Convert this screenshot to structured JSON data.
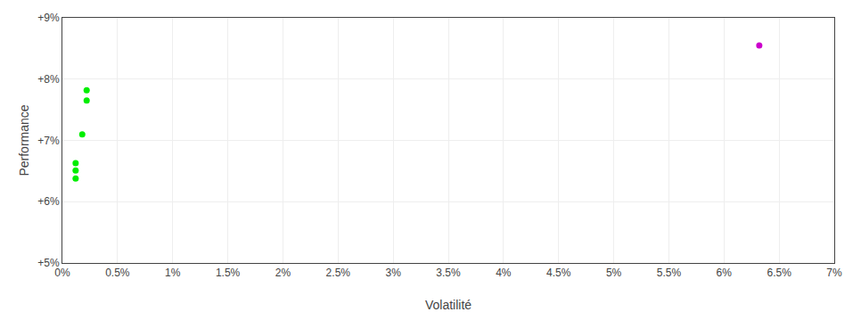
{
  "chart_data": {
    "type": "scatter",
    "x_label": "Volatilité",
    "y_label": "Performance",
    "series": [
      {
        "color": "#00ee00",
        "marker": "circle",
        "x": [
          0.0022,
          0.0022,
          0.0018,
          0.0012,
          0.0012,
          0.0012
        ],
        "values": [
          0.0782,
          0.0765,
          0.071,
          0.0663,
          0.0651,
          0.0638
        ]
      },
      {
        "color": "#cc00cc",
        "marker": "circle",
        "x": [
          0.0632
        ],
        "values": [
          0.0855
        ]
      }
    ],
    "xlim": [
      0,
      0.07
    ],
    "ylim": [
      0.05,
      0.09
    ],
    "xticks": [
      {
        "value": 0.0,
        "label": "0%"
      },
      {
        "value": 0.005,
        "label": "0.5%"
      },
      {
        "value": 0.01,
        "label": "1%"
      },
      {
        "value": 0.015,
        "label": "1.5%"
      },
      {
        "value": 0.02,
        "label": "2%"
      },
      {
        "value": 0.025,
        "label": "2.5%"
      },
      {
        "value": 0.03,
        "label": "3%"
      },
      {
        "value": 0.035,
        "label": "3.5%"
      },
      {
        "value": 0.04,
        "label": "4%"
      },
      {
        "value": 0.045,
        "label": "4.5%"
      },
      {
        "value": 0.05,
        "label": "5%"
      },
      {
        "value": 0.055,
        "label": "5.5%"
      },
      {
        "value": 0.06,
        "label": "6%"
      },
      {
        "value": 0.065,
        "label": "6.5%"
      },
      {
        "value": 0.07,
        "label": "7%"
      }
    ],
    "yticks": [
      {
        "value": 0.05,
        "label": "+5%"
      },
      {
        "value": 0.06,
        "label": "+6%"
      },
      {
        "value": 0.07,
        "label": "+7%"
      },
      {
        "value": 0.08,
        "label": "+8%"
      },
      {
        "value": 0.09,
        "label": "+9%"
      }
    ],
    "grid": true
  }
}
